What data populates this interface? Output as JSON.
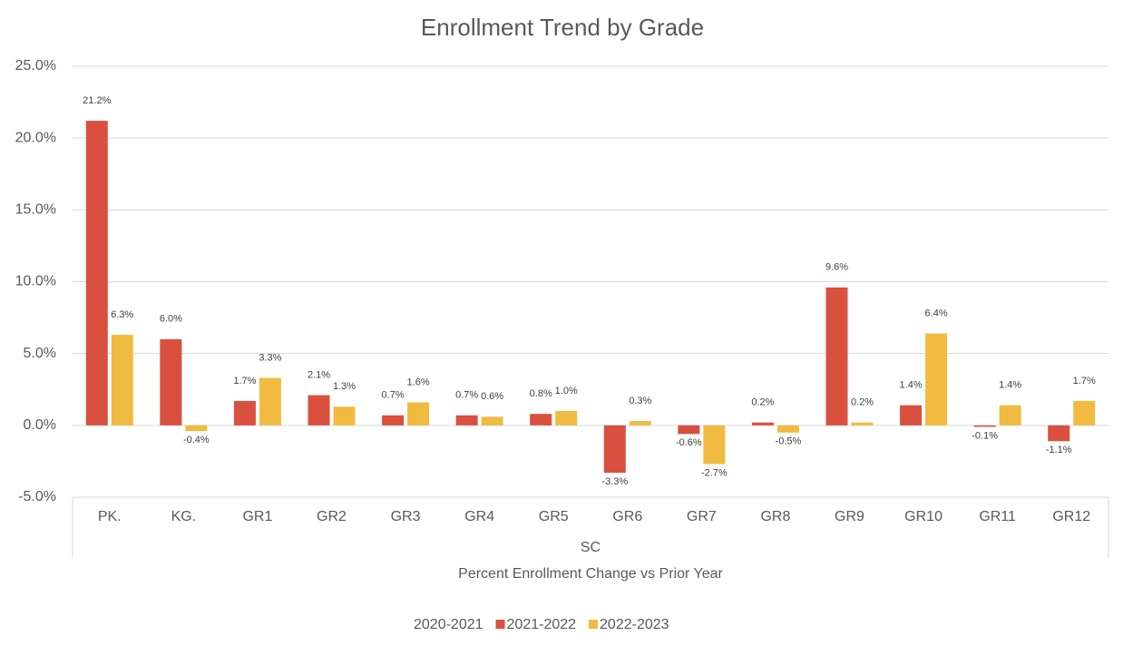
{
  "chart_data": {
    "type": "bar",
    "title": "Enrollment Trend by Grade",
    "categories": [
      "PK.",
      "KG.",
      "GR1",
      "GR2",
      "GR3",
      "GR4",
      "GR5",
      "GR6",
      "GR7",
      "GR8",
      "GR9",
      "GR10",
      "GR11",
      "GR12"
    ],
    "x_group_label": "SC",
    "x_label": "Percent Enrollment Change vs Prior Year",
    "series": [
      {
        "name": "2020-2021",
        "values": [
          null,
          null,
          null,
          null,
          null,
          null,
          null,
          null,
          null,
          null,
          null,
          null,
          null,
          null
        ]
      },
      {
        "name": "2021-2022",
        "color": "#d9503f",
        "values": [
          21.2,
          6.0,
          1.7,
          2.1,
          0.7,
          0.7,
          0.8,
          -3.3,
          -0.6,
          0.2,
          9.6,
          1.4,
          -0.1,
          -1.1
        ],
        "value_labels": [
          "21.2%",
          "6.0%",
          "1.7%",
          "2.1%",
          "0.7%",
          "0.7%",
          "0.8%",
          "-3.3%",
          "-0.6%",
          "0.2%",
          "9.6%",
          "1.4%",
          "-0.1%",
          "-1.1%"
        ]
      },
      {
        "name": "2022-2023",
        "color": "#f0bb40",
        "values": [
          6.3,
          -0.4,
          3.3,
          1.3,
          1.6,
          0.6,
          1.0,
          0.3,
          -2.7,
          -0.5,
          0.2,
          6.4,
          1.4,
          1.7
        ],
        "value_labels": [
          "6.3%",
          "-0.4%",
          "3.3%",
          "1.3%",
          "1.6%",
          "0.6%",
          "1.0%",
          "0.3%",
          "-2.7%",
          "-0.5%",
          "0.2%",
          "6.4%",
          "1.4%",
          "1.7%"
        ]
      }
    ],
    "ylim": [
      -5,
      25
    ],
    "yticks": [
      {
        "value": -5,
        "label": "-5.0%"
      },
      {
        "value": 0,
        "label": "0.0%"
      },
      {
        "value": 5,
        "label": "5.0%"
      },
      {
        "value": 10,
        "label": "10.0%"
      },
      {
        "value": 15,
        "label": "15.0%"
      },
      {
        "value": 20,
        "label": "20.0%"
      },
      {
        "value": 25,
        "label": "25.0%"
      }
    ],
    "grid": true,
    "legend": "bottom"
  }
}
